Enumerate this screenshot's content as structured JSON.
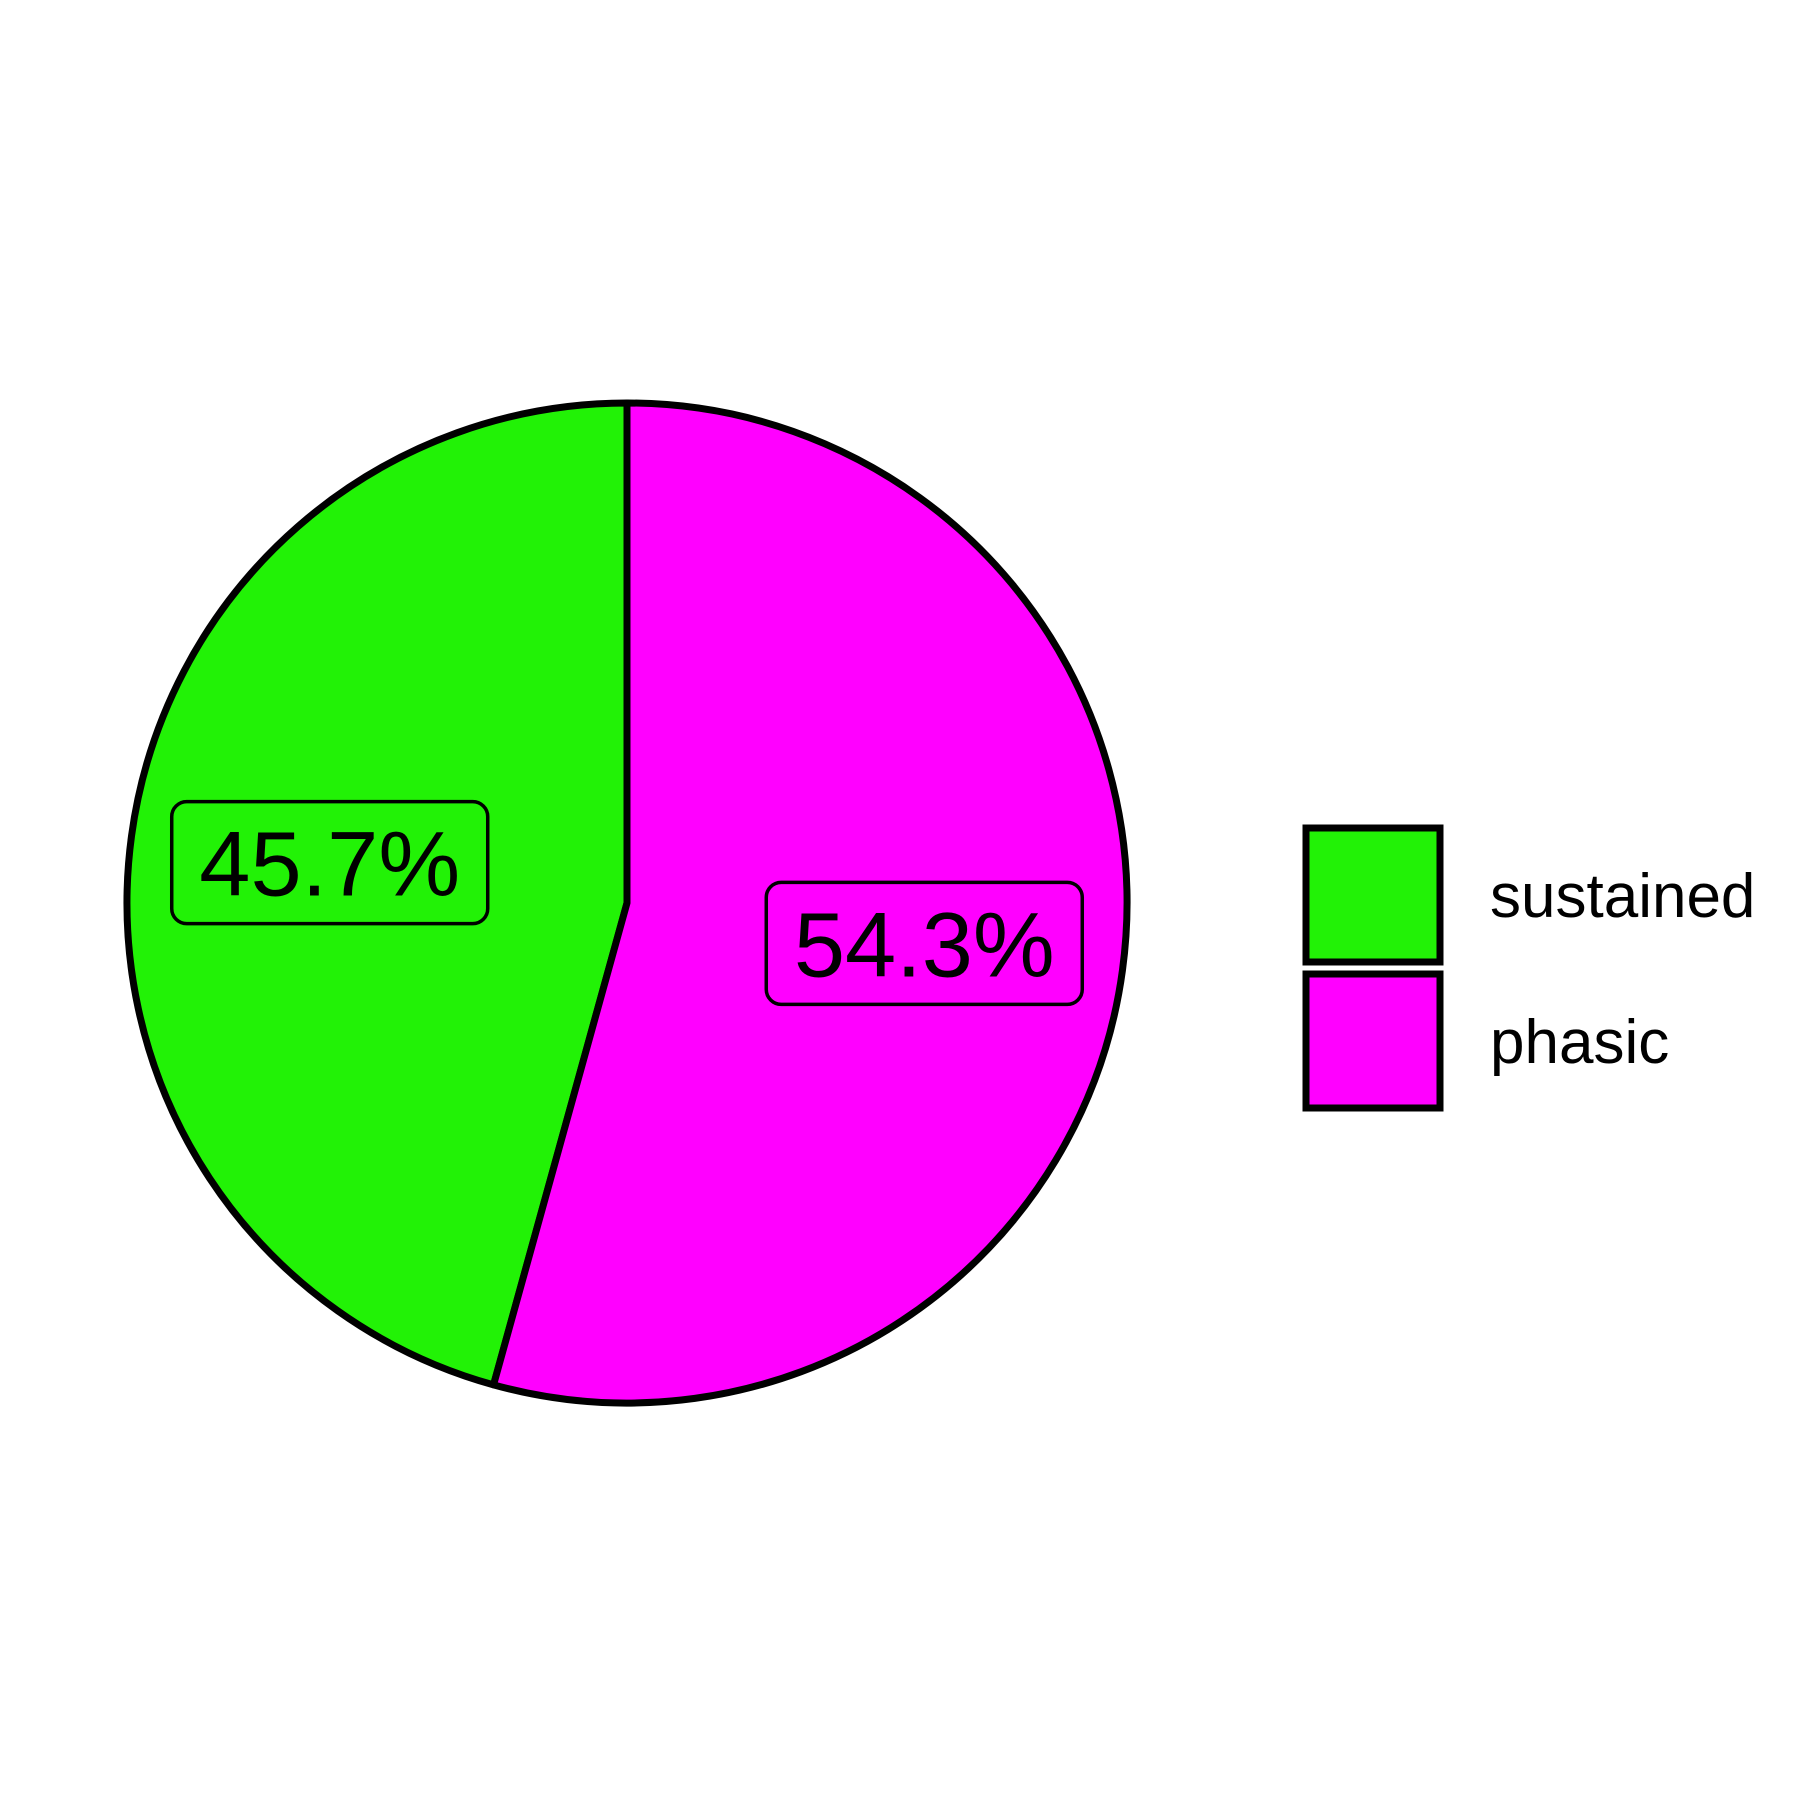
{
  "chart_data": {
    "type": "pie",
    "title": "",
    "slices": [
      {
        "name": "sustained",
        "value": 45.7,
        "label": "45.7%",
        "color": "#22f206"
      },
      {
        "name": "phasic",
        "value": 54.3,
        "label": "54.3%",
        "color": "#ff00ff"
      }
    ],
    "legend": {
      "placement": "right",
      "entries": [
        "sustained",
        "phasic"
      ]
    },
    "start_angle": "12 o'clock",
    "direction": "counter-clockwise"
  }
}
